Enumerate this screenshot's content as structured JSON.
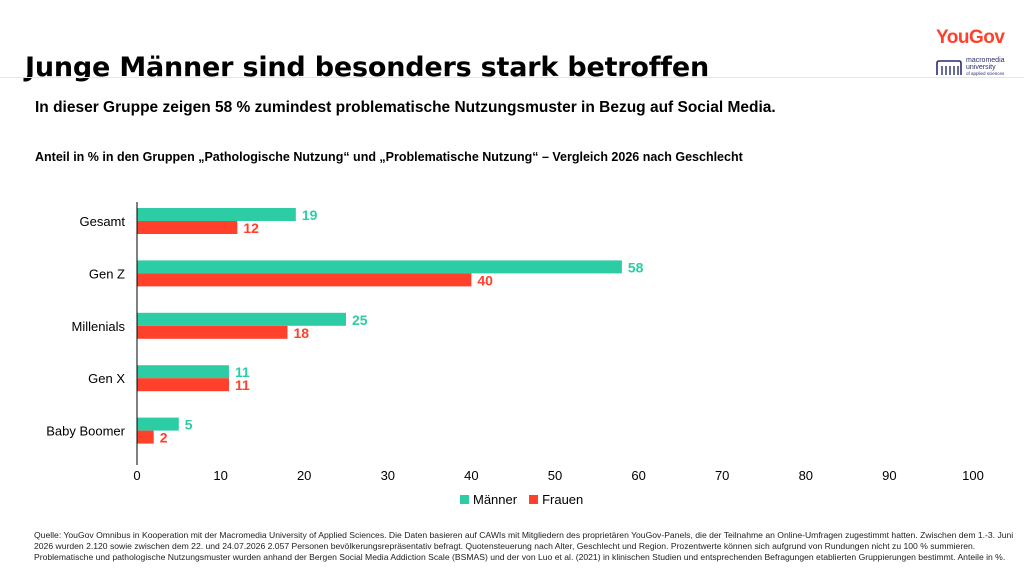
{
  "header": {
    "title": "Junge Männer sind besonders stark betroffen",
    "brand": "YouGov",
    "partner_logo_lines": [
      "macromedia",
      "university",
      "of applied sciences"
    ]
  },
  "subtitle": "In dieser Gruppe zeigen 58 % zumindest problematische Nutzungsmuster in Bezug auf Social Media.",
  "chart_title": "Anteil in % in den Gruppen „Pathologische Nutzung“ und „Problematische Nutzung“ – Vergleich 2026 nach Geschlecht",
  "colors": {
    "maenner": "#2ccda4",
    "frauen": "#ff412c",
    "brand": "#ff412c",
    "axis": "#000000"
  },
  "chart_data": {
    "type": "bar",
    "orientation": "horizontal",
    "categories": [
      "Gesamt",
      "Gen Z",
      "Millenials",
      "Gen X",
      "Baby Boomer"
    ],
    "series": [
      {
        "name": "Männer",
        "values": [
          19,
          58,
          25,
          11,
          5
        ]
      },
      {
        "name": "Frauen",
        "values": [
          12,
          40,
          18,
          11,
          2
        ]
      }
    ],
    "xlim": [
      0,
      100
    ],
    "x_ticks": [
      0,
      10,
      20,
      30,
      40,
      50,
      60,
      70,
      80,
      90,
      100
    ],
    "grid": false,
    "legend_position": "bottom"
  },
  "footer": "Quelle: YouGov Omnibus in Kooperation mit der Macromedia University of Applied Sciences. Die Daten basieren auf CAWIs mit Mitgliedern des proprietären YouGov-Panels, die der Teilnahme an Online-Umfragen zugestimmt hatten. Zwischen dem 1.-3. Juni 2026 wurden 2.120 sowie zwischen dem 22. und 24.07.2026 2.057 Personen bevölkerungsrepräsentativ befragt. Quotensteuerung nach Alter, Geschlecht und Region. Prozentwerte können sich aufgrund von Rundungen nicht zu 100 % summieren. Problematische und pathologische Nutzungsmuster wurden anhand der Bergen Social Media Addiction Scale (BSMAS) und der von Luo et al. (2021) in klinischen Studien und entsprechenden Befragungen etablierten Gruppierungen bestimmt. Anteile in %."
}
